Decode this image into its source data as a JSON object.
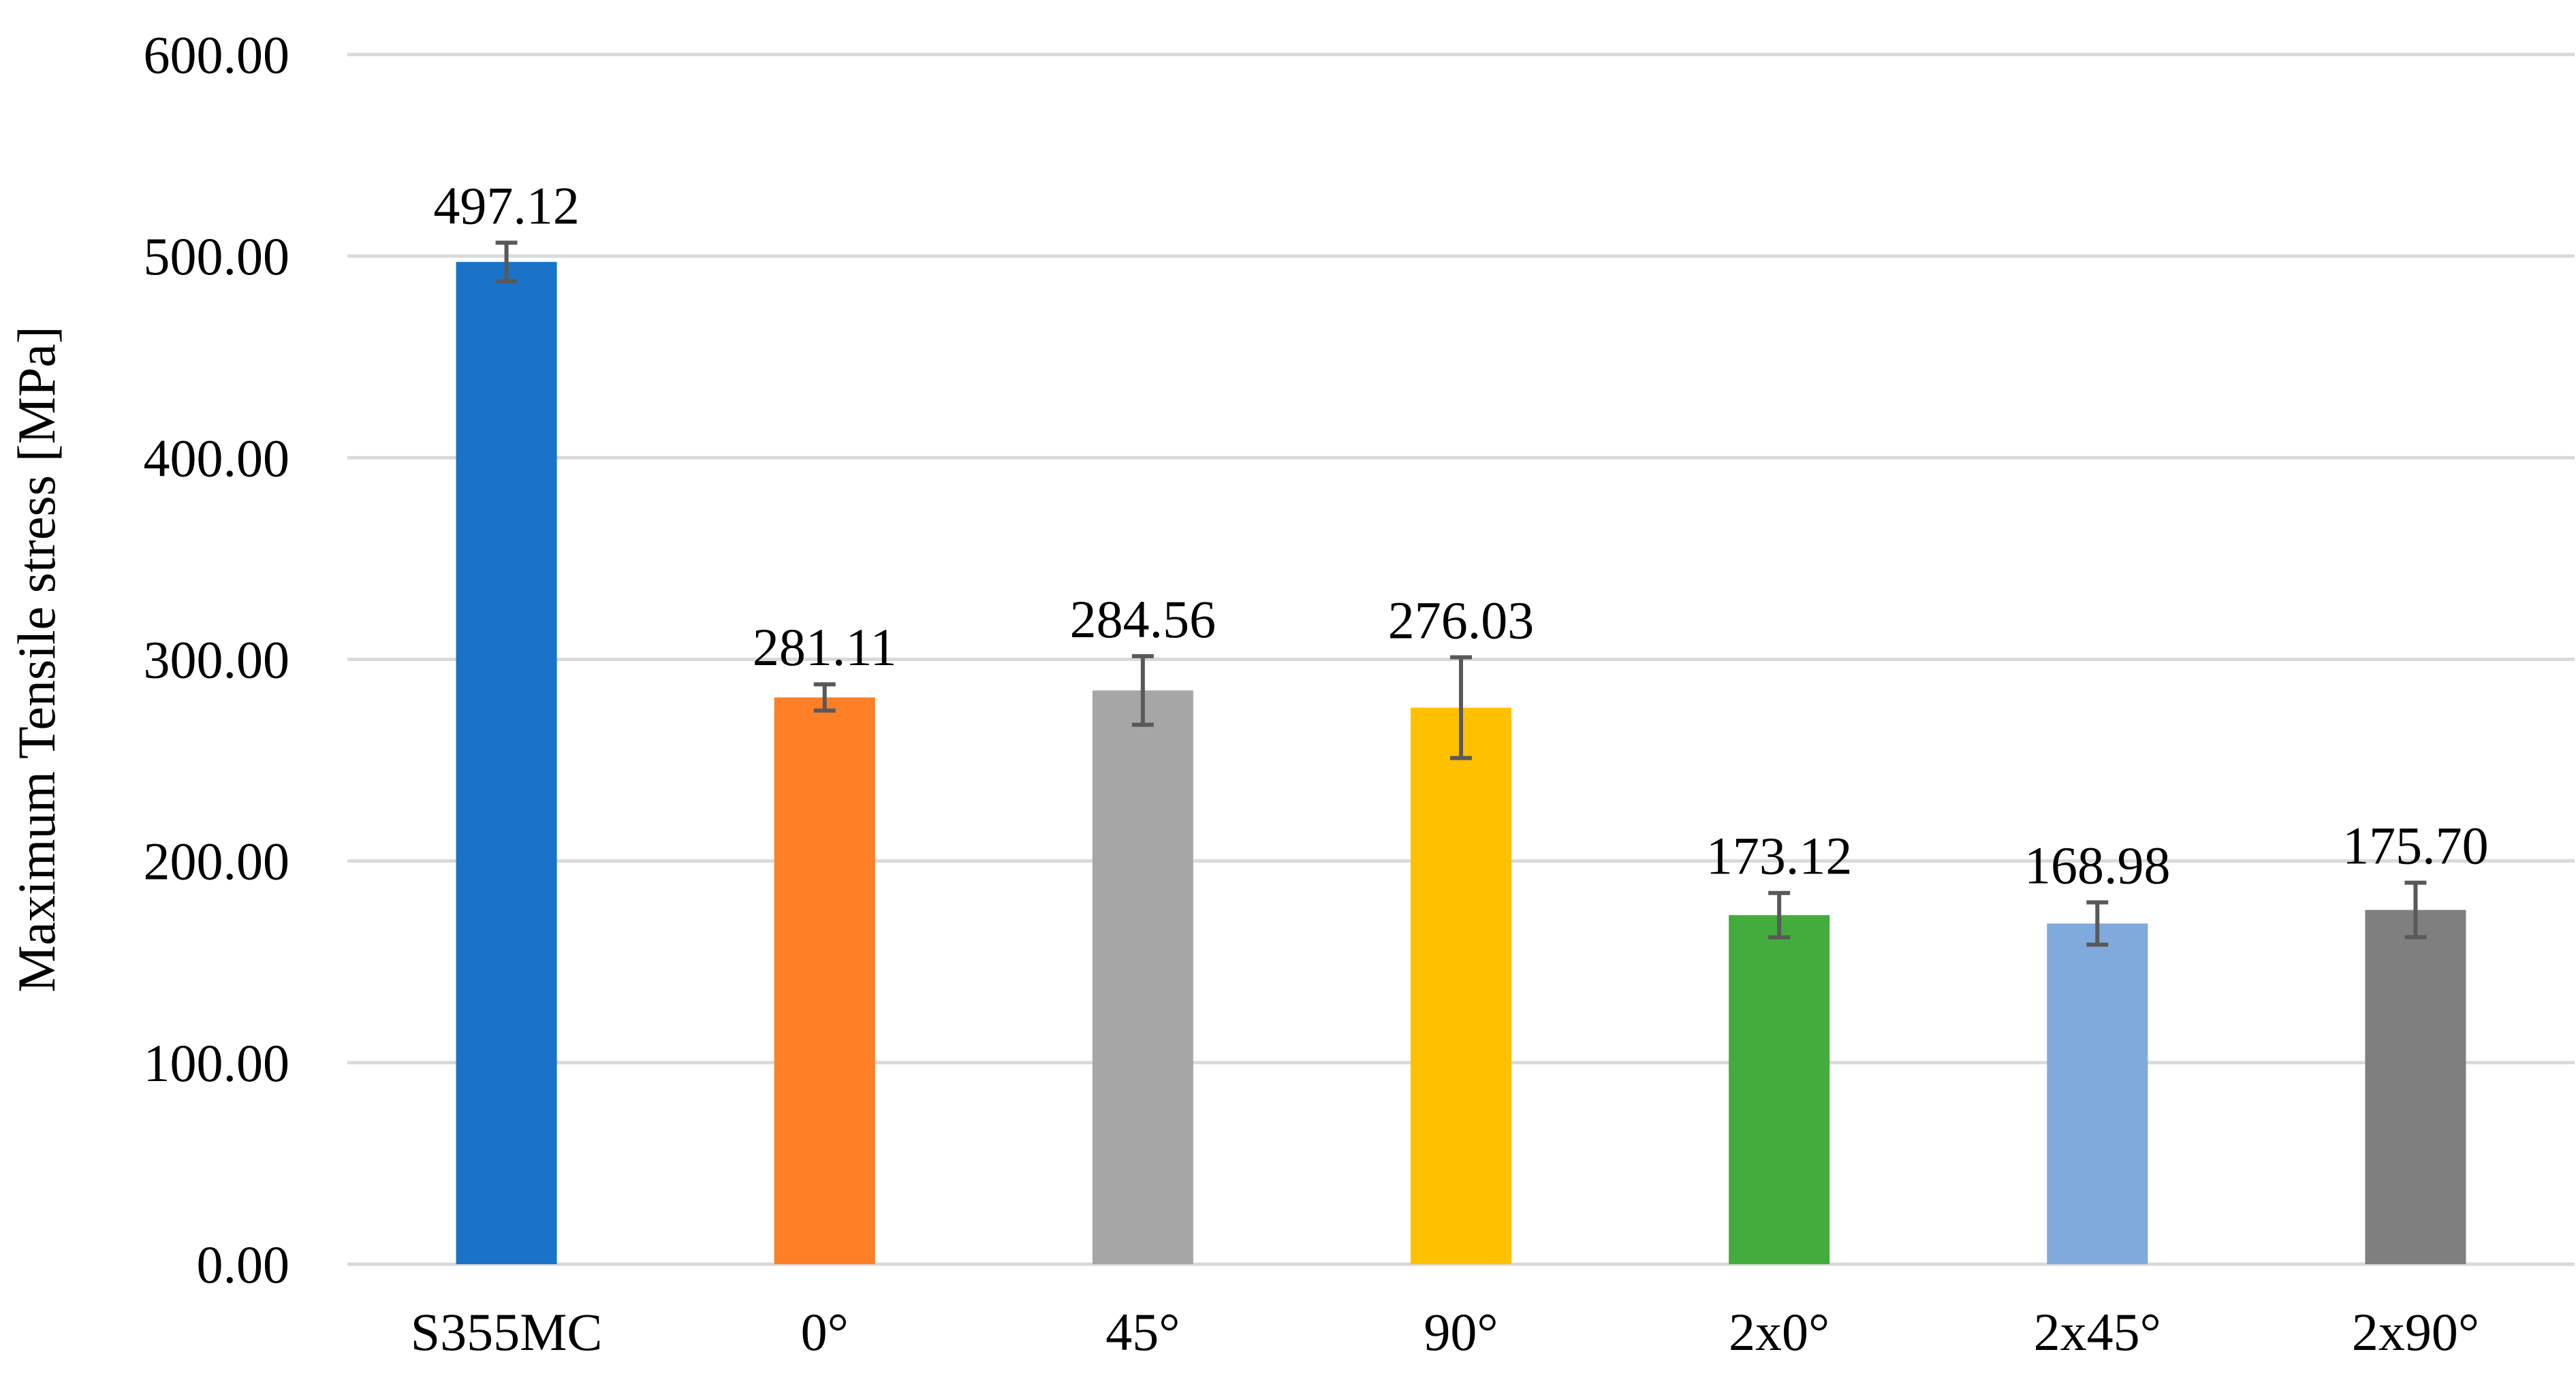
{
  "chart_data": {
    "type": "bar",
    "title": "",
    "xlabel": "",
    "ylabel": "Maximum Tensile stress [MPa]",
    "categories": [
      "S355MC",
      "0°",
      "45°",
      "90°",
      "2x0°",
      "2x45°",
      "2x90°"
    ],
    "values": [
      497.12,
      281.11,
      284.56,
      276.03,
      173.12,
      168.98,
      175.7
    ],
    "value_labels": [
      "497.12",
      "281.11",
      "284.56",
      "276.03",
      "173.12",
      "168.98",
      "175.70"
    ],
    "error_bars": [
      9.5,
      6.5,
      17.0,
      25.0,
      11.0,
      10.5,
      13.5
    ],
    "ylim": [
      0,
      600
    ],
    "yticks": [
      0,
      100,
      200,
      300,
      400,
      500,
      600
    ],
    "ytick_labels": [
      "0.00",
      "100.00",
      "200.00",
      "300.00",
      "400.00",
      "500.00",
      "600.00"
    ],
    "grid": true,
    "legend": "none",
    "colors": [
      "#1a73c9",
      "#ff7f27",
      "#a6a6a6",
      "#ffc000",
      "#43ac3d",
      "#80aadc",
      "#7f7f7f"
    ],
    "grid_color": "#d9d9d9",
    "error_bar_color": "#595959"
  }
}
